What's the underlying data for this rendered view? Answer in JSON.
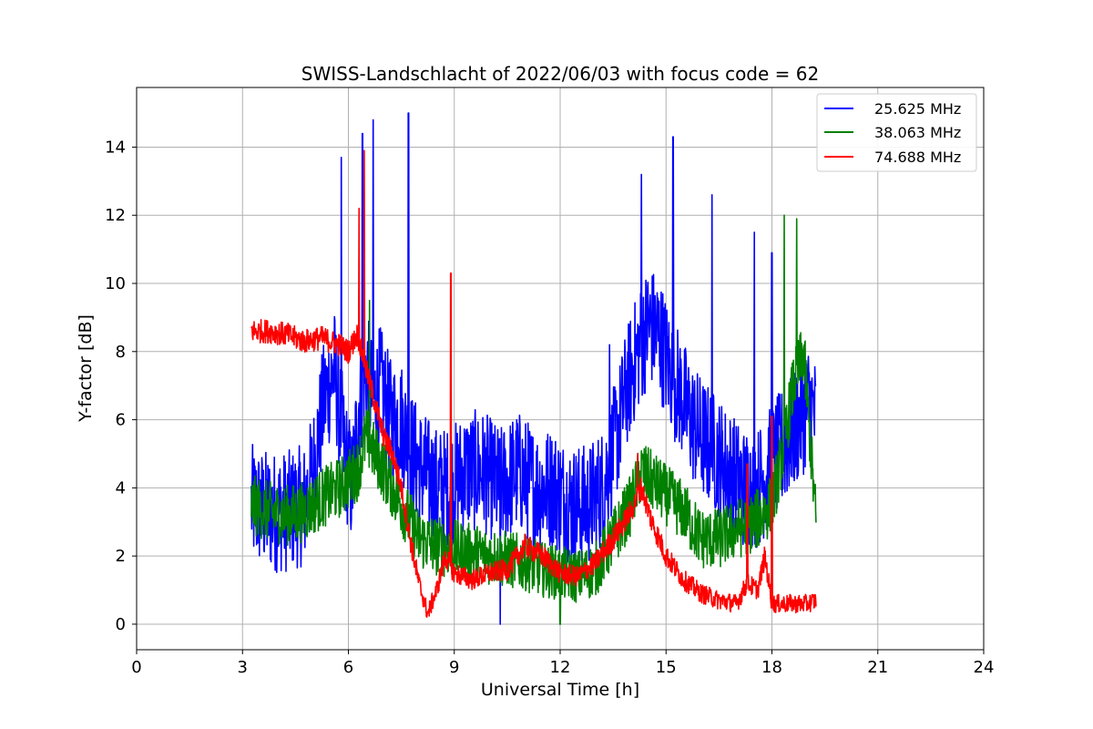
{
  "chart_data": {
    "type": "line",
    "title": "SWISS-Landschlacht of 2022/06/03 with focus code = 62",
    "xlabel": "Universal Time [h]",
    "ylabel": "Y-factor [dB]",
    "xlim": [
      0,
      24
    ],
    "ylim": [
      -0.75,
      15.75
    ],
    "xticks": [
      0,
      3,
      6,
      9,
      12,
      15,
      18,
      21,
      24
    ],
    "yticks": [
      0,
      2,
      4,
      6,
      8,
      10,
      12,
      14
    ],
    "grid": true,
    "legend_position": "top-right",
    "series": [
      {
        "name": "25.625 MHz",
        "color": "#0000ff",
        "x": [
          3.25,
          3.75,
          4.25,
          4.75,
          5.0,
          5.3,
          5.6,
          5.9,
          6.1,
          6.3,
          6.5,
          6.7,
          6.9,
          7.2,
          7.5,
          7.8,
          8.1,
          8.5,
          8.9,
          9.3,
          9.8,
          10.3,
          10.8,
          11.3,
          11.8,
          12.3,
          12.8,
          13.2,
          13.6,
          13.9,
          14.2,
          14.5,
          14.8,
          15.1,
          15.4,
          15.7,
          16.0,
          16.4,
          16.8,
          17.2,
          17.6,
          17.9,
          18.2,
          18.5,
          18.8,
          19.05,
          19.25
        ],
        "values": [
          3.5,
          3.3,
          3.3,
          3.5,
          4.5,
          6.5,
          7.5,
          5.0,
          4.0,
          6.5,
          7.5,
          6.5,
          7.0,
          6.0,
          6.0,
          5.0,
          4.5,
          4.0,
          4.0,
          4.5,
          4.5,
          4.0,
          4.5,
          4.0,
          4.0,
          3.5,
          3.5,
          4.0,
          5.5,
          7.0,
          8.0,
          8.8,
          8.5,
          7.5,
          6.8,
          6.0,
          5.5,
          5.0,
          4.5,
          4.0,
          4.0,
          4.5,
          5.0,
          5.5,
          6.0,
          6.5,
          6.0
        ],
        "peaks": [
          [
            5.8,
            13.7
          ],
          [
            6.4,
            14.4
          ],
          [
            6.7,
            14.8
          ],
          [
            7.7,
            15.0
          ],
          [
            15.2,
            14.3
          ],
          [
            14.3,
            13.2
          ],
          [
            16.3,
            12.6
          ],
          [
            17.5,
            11.5
          ],
          [
            18.0,
            10.9
          ],
          [
            13.4,
            8.2
          ],
          [
            10.3,
            0.0
          ]
        ]
      },
      {
        "name": "38.063 MHz",
        "color": "#008000",
        "x": [
          3.25,
          3.75,
          4.25,
          4.75,
          5.25,
          5.75,
          6.25,
          6.5,
          6.75,
          7.0,
          7.25,
          7.5,
          8.0,
          8.5,
          9.0,
          9.5,
          10.0,
          10.5,
          11.0,
          11.5,
          12.0,
          12.5,
          13.0,
          13.5,
          14.0,
          14.3,
          14.6,
          15.0,
          15.5,
          16.0,
          16.5,
          17.0,
          17.5,
          18.0,
          18.3,
          18.6,
          18.9,
          19.25
        ],
        "values": [
          3.5,
          3.3,
          3.2,
          3.3,
          3.7,
          4.0,
          4.5,
          5.5,
          5.0,
          4.5,
          4.0,
          3.5,
          2.5,
          2.3,
          2.2,
          2.1,
          2.0,
          1.9,
          1.8,
          1.6,
          1.5,
          1.4,
          1.6,
          2.5,
          3.5,
          4.5,
          4.2,
          3.8,
          3.3,
          2.5,
          2.5,
          2.8,
          3.0,
          3.5,
          5.0,
          7.0,
          8.0,
          3.0
        ],
        "peaks": [
          [
            18.35,
            12.0
          ],
          [
            18.7,
            11.9
          ],
          [
            6.6,
            9.5
          ],
          [
            12.0,
            0.0
          ]
        ]
      },
      {
        "name": "74.688 MHz",
        "color": "#ff0000",
        "x": [
          3.25,
          3.75,
          4.25,
          4.75,
          5.25,
          5.75,
          6.0,
          6.25,
          6.5,
          6.75,
          7.0,
          7.25,
          7.5,
          7.75,
          8.0,
          8.25,
          8.5,
          8.75,
          9.0,
          9.5,
          10.0,
          10.5,
          11.0,
          11.5,
          12.0,
          12.5,
          13.0,
          13.5,
          14.0,
          14.3,
          14.6,
          15.0,
          15.5,
          16.0,
          16.5,
          17.0,
          17.3,
          17.6,
          17.8,
          18.0,
          18.5,
          19.0,
          19.25
        ],
        "values": [
          8.6,
          8.6,
          8.5,
          8.3,
          8.4,
          8.2,
          8.0,
          8.5,
          7.5,
          6.5,
          5.5,
          5.0,
          4.0,
          2.5,
          1.2,
          0.3,
          1.0,
          2.0,
          1.5,
          1.3,
          1.5,
          1.6,
          2.3,
          2.0,
          1.5,
          1.4,
          1.8,
          2.5,
          3.3,
          4.0,
          3.0,
          2.0,
          1.3,
          0.9,
          0.7,
          0.6,
          1.2,
          1.0,
          2.0,
          0.6,
          0.6,
          0.6,
          0.7
        ],
        "peaks": [
          [
            6.3,
            12.2
          ],
          [
            6.45,
            13.9
          ],
          [
            8.9,
            10.3
          ],
          [
            17.3,
            4.7
          ],
          [
            18.0,
            6.1
          ],
          [
            14.2,
            5.0
          ]
        ]
      }
    ]
  }
}
